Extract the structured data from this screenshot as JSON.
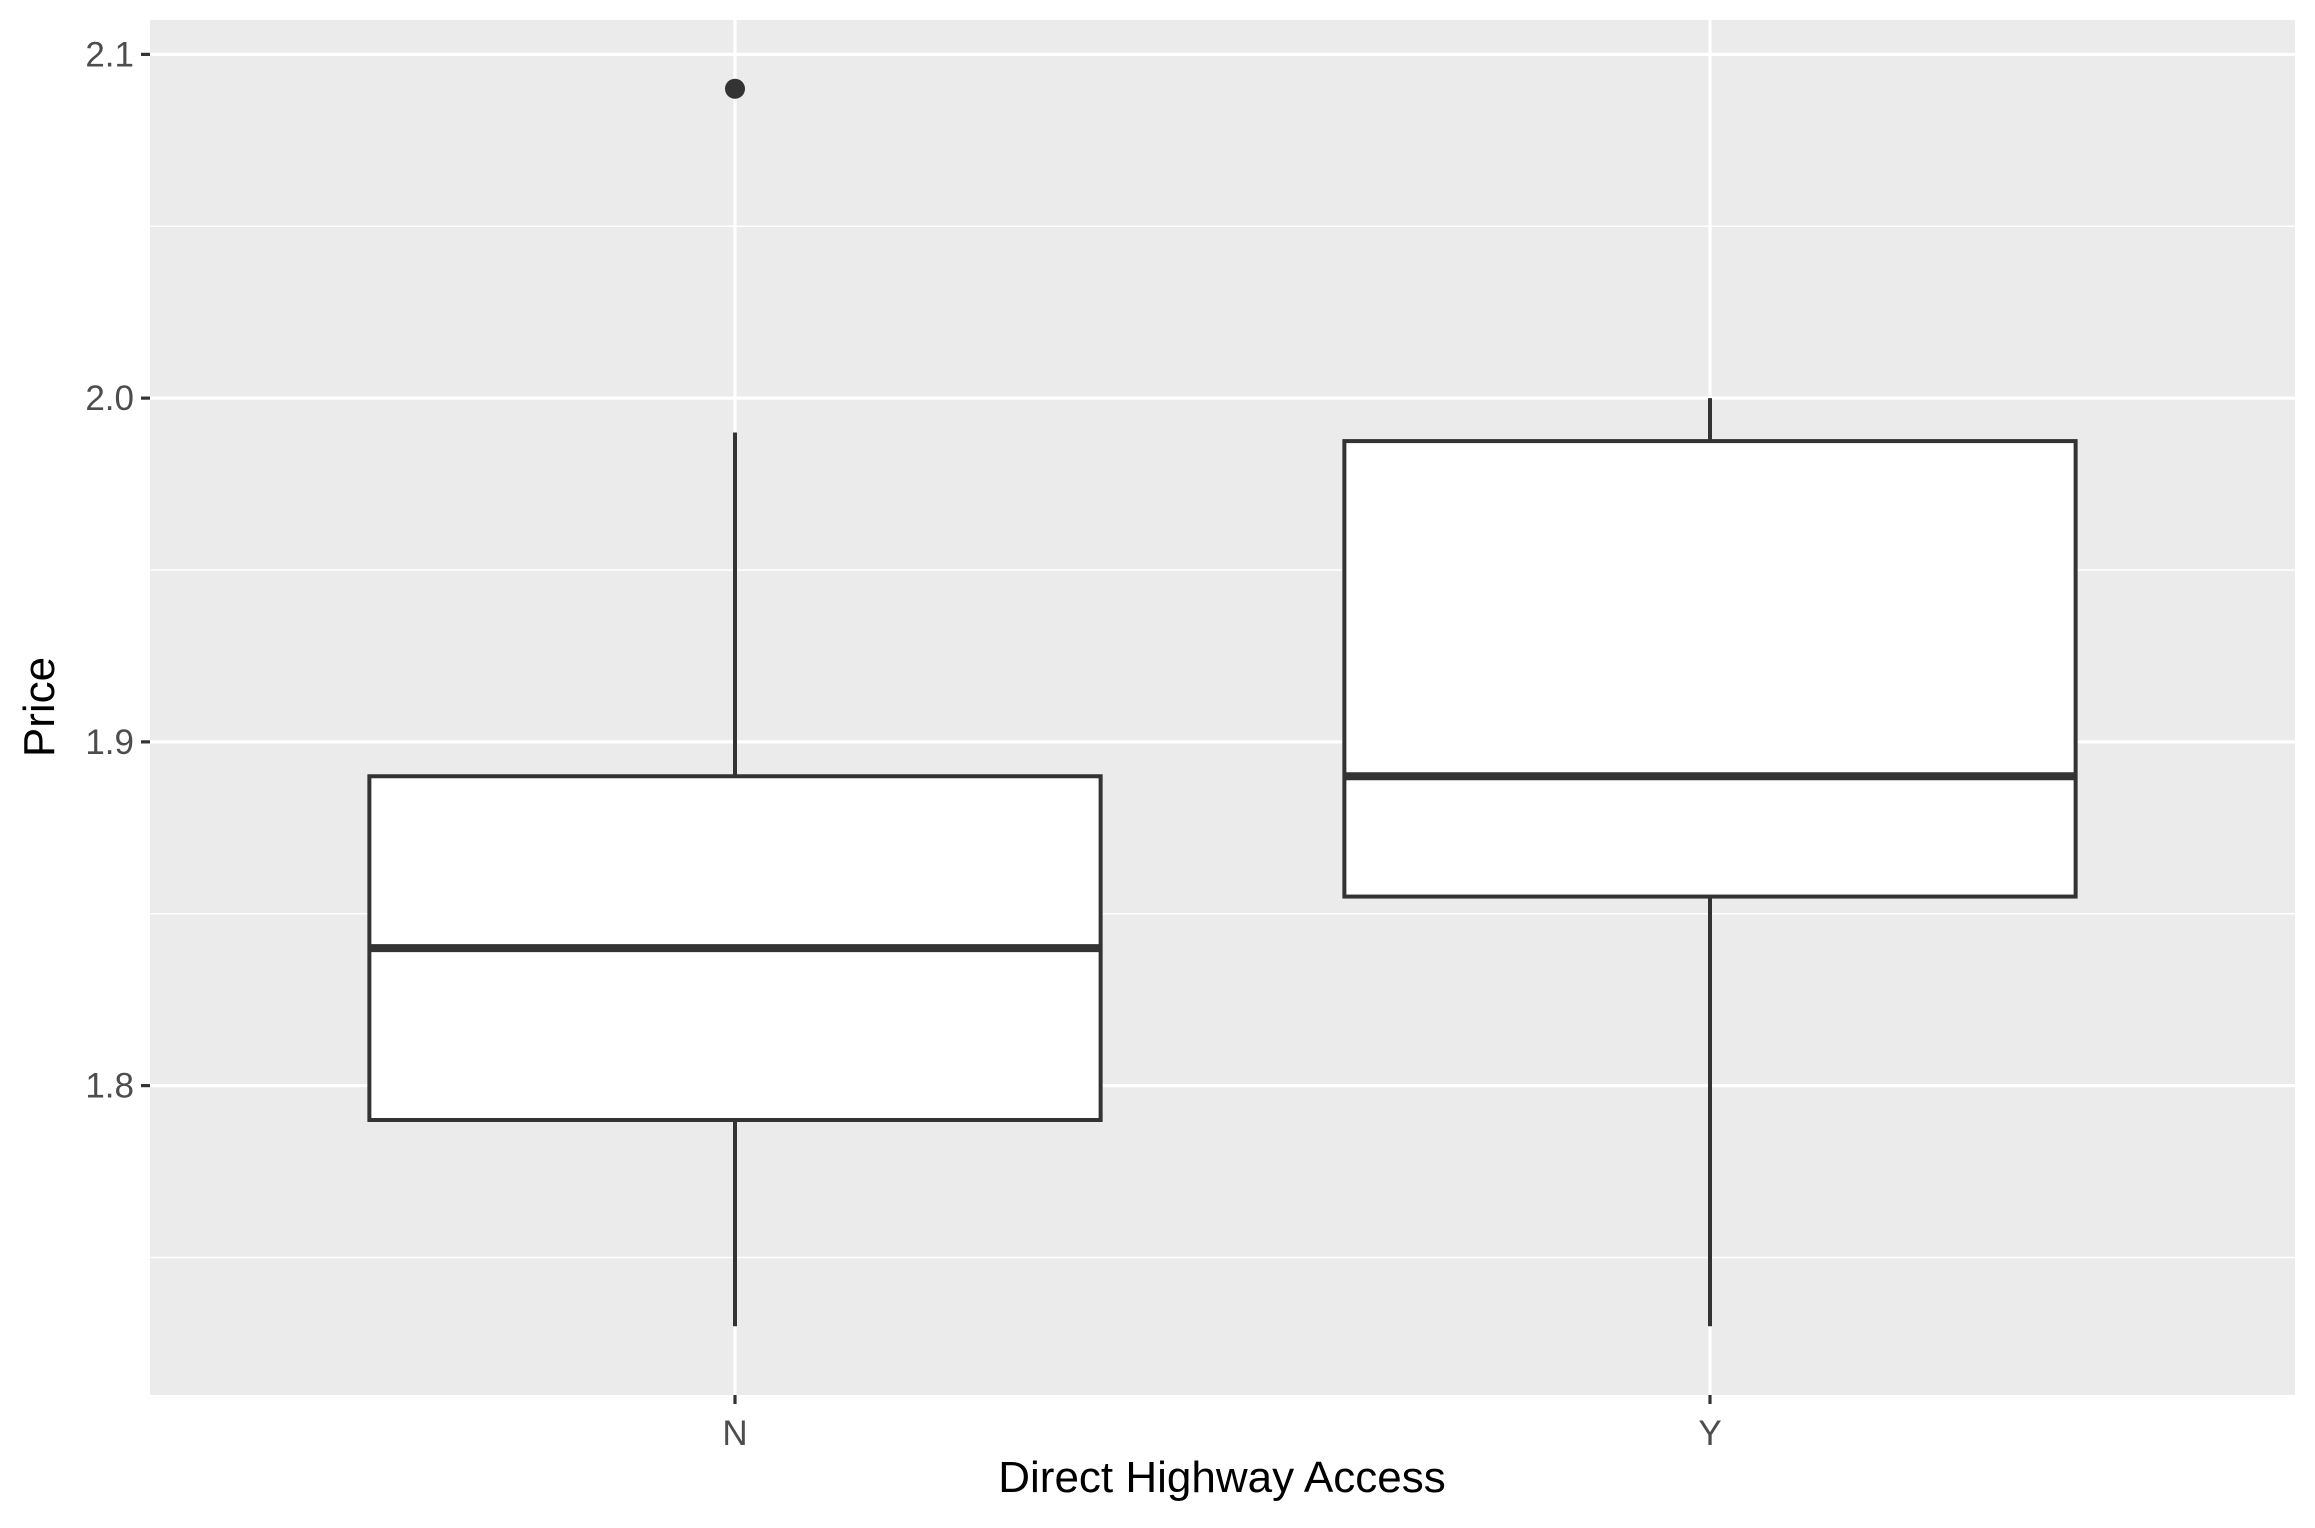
{
  "chart_data": {
    "type": "boxplot",
    "title": "",
    "xlabel": "Direct Highway Access",
    "ylabel": "Price",
    "categories": [
      "N",
      "Y"
    ],
    "ylim": [
      1.71,
      2.11
    ],
    "yticks": [
      1.8,
      1.9,
      2.0,
      2.1
    ],
    "ytick_labels": [
      "1.8",
      "1.9",
      "2.0",
      "2.1"
    ],
    "grid": true,
    "boxes": [
      {
        "category": "N",
        "whisker_low": 1.73,
        "q1": 1.79,
        "median": 1.84,
        "q3": 1.89,
        "whisker_high": 1.99,
        "outliers": [
          2.09
        ]
      },
      {
        "category": "Y",
        "whisker_low": 1.73,
        "q1": 1.855,
        "median": 1.89,
        "q3": 1.9875,
        "whisker_high": 2.0,
        "outliers": []
      }
    ],
    "colors": {
      "panel": "#ebebeb",
      "grid": "#ffffff",
      "box_fill": "#ffffff",
      "box_line": "#333333"
    }
  }
}
